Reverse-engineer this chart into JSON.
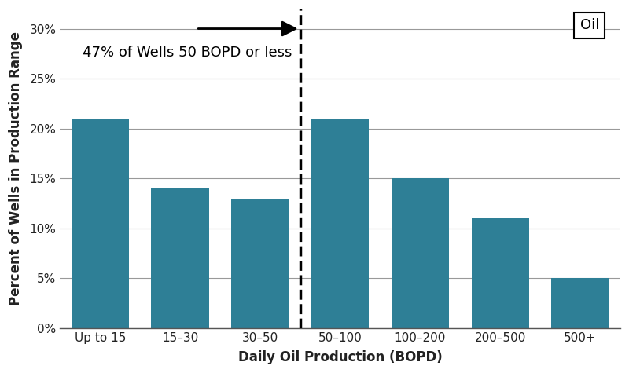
{
  "categories": [
    "Up to 15",
    "15–30",
    "30–50",
    "50–100",
    "100–200",
    "200–500",
    "500+"
  ],
  "values": [
    21,
    14,
    13,
    21,
    15,
    11,
    5
  ],
  "bar_color": "#2e7f96",
  "xlabel": "Daily Oil Production (BOPD)",
  "ylabel": "Percent of Wells in Production Range",
  "ylim": [
    0,
    32
  ],
  "yticks": [
    0,
    5,
    10,
    15,
    20,
    25,
    30
  ],
  "yticklabels": [
    "0%",
    "5%",
    "10%",
    "15%",
    "20%",
    "25%",
    "30%"
  ],
  "annotation_text": "47% of Wells 50 BOPD or less",
  "legend_label": "Oil",
  "dashed_line_x": 2.5,
  "background_color": "#ffffff",
  "grid_color": "#999999",
  "label_fontsize": 12,
  "tick_fontsize": 11,
  "annotation_fontsize": 13
}
